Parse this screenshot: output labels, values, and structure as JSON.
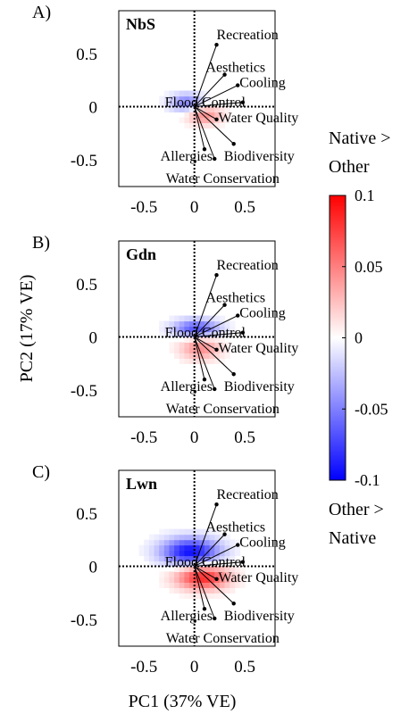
{
  "figure": {
    "ylabel": "PC2 (17% VE)",
    "xlabel": "PC1 (37% VE)"
  },
  "colorbar": {
    "title_top": [
      "Native >",
      "Other"
    ],
    "title_bottom": [
      "Other >",
      "Native"
    ],
    "ticks": [
      "0.1",
      "0.05",
      "0",
      "-0.05",
      "-0.1"
    ],
    "tick_values": [
      0.1,
      0.05,
      0,
      -0.05,
      -0.1
    ],
    "range": [
      -0.1,
      0.1
    ],
    "colors": {
      "low": "#0000ff",
      "mid": "#ffffff",
      "high": "#ff0000"
    }
  },
  "chart_data": [
    {
      "type": "heatmap",
      "panel_label": "A)",
      "title": "NbS",
      "xlim": [
        -0.75,
        0.8
      ],
      "ylim": [
        -0.75,
        0.9
      ],
      "xticks": [
        -0.5,
        0,
        0.5
      ],
      "xtick_labels": [
        "-0.5",
        "0",
        "0.5"
      ],
      "yticks": [
        0.5,
        0,
        -0.5
      ],
      "ytick_labels": [
        "0.5",
        "0",
        "-0.5"
      ],
      "loadings": [
        {
          "name": "Recreation",
          "x": 0.22,
          "y": 0.58
        },
        {
          "name": "Aesthetics",
          "x": 0.3,
          "y": 0.3
        },
        {
          "name": "Cooling",
          "x": 0.43,
          "y": 0.2
        },
        {
          "name": "Flood Control",
          "x": 0.48,
          "y": 0.04
        },
        {
          "name": "Water Quality",
          "x": 0.22,
          "y": -0.12
        },
        {
          "name": "Biodiversity",
          "x": 0.39,
          "y": -0.35
        },
        {
          "name": "Allergies",
          "x": 0.1,
          "y": -0.4
        },
        {
          "name": "Water Conservation",
          "x": 0.2,
          "y": -0.49
        }
      ],
      "blobs": [
        {
          "x": -0.08,
          "y": 0.04,
          "sx": 0.12,
          "sy": 0.06,
          "value": -0.05
        },
        {
          "x": 0.1,
          "y": -0.08,
          "sx": 0.12,
          "sy": 0.06,
          "value": 0.045
        }
      ]
    },
    {
      "type": "heatmap",
      "panel_label": "B)",
      "title": "Gdn",
      "xlim": [
        -0.75,
        0.8
      ],
      "ylim": [
        -0.75,
        0.9
      ],
      "xticks": [
        -0.5,
        0,
        0.5
      ],
      "xtick_labels": [
        "-0.5",
        "0",
        "0.5"
      ],
      "yticks": [
        0.5,
        0,
        -0.5
      ],
      "ytick_labels": [
        "0.5",
        "0",
        "-0.5"
      ],
      "loadings": [
        {
          "name": "Recreation",
          "x": 0.22,
          "y": 0.58
        },
        {
          "name": "Aesthetics",
          "x": 0.3,
          "y": 0.3
        },
        {
          "name": "Cooling",
          "x": 0.43,
          "y": 0.2
        },
        {
          "name": "Flood Control",
          "x": 0.48,
          "y": 0.04
        },
        {
          "name": "Water Quality",
          "x": 0.22,
          "y": -0.12
        },
        {
          "name": "Biodiversity",
          "x": 0.39,
          "y": -0.35
        },
        {
          "name": "Allergies",
          "x": 0.1,
          "y": -0.4
        },
        {
          "name": "Water Conservation",
          "x": 0.2,
          "y": -0.49
        }
      ],
      "blobs": [
        {
          "x": 0.02,
          "y": 0.08,
          "sx": 0.16,
          "sy": 0.06,
          "value": -0.07
        },
        {
          "x": 0.06,
          "y": -0.1,
          "sx": 0.14,
          "sy": 0.08,
          "value": 0.045
        }
      ]
    },
    {
      "type": "heatmap",
      "panel_label": "C)",
      "title": "Lwn",
      "xlim": [
        -0.75,
        0.8
      ],
      "ylim": [
        -0.75,
        0.9
      ],
      "xticks": [
        -0.5,
        0,
        0.5
      ],
      "xtick_labels": [
        "-0.5",
        "0",
        "0.5"
      ],
      "yticks": [
        0.5,
        0,
        -0.5
      ],
      "ytick_labels": [
        "0.5",
        "0",
        "-0.5"
      ],
      "loadings": [
        {
          "name": "Recreation",
          "x": 0.22,
          "y": 0.58
        },
        {
          "name": "Aesthetics",
          "x": 0.3,
          "y": 0.3
        },
        {
          "name": "Cooling",
          "x": 0.43,
          "y": 0.2
        },
        {
          "name": "Flood Control",
          "x": 0.48,
          "y": 0.04
        },
        {
          "name": "Water Quality",
          "x": 0.22,
          "y": -0.12
        },
        {
          "name": "Biodiversity",
          "x": 0.39,
          "y": -0.35
        },
        {
          "name": "Allergies",
          "x": 0.1,
          "y": -0.4
        },
        {
          "name": "Water Conservation",
          "x": 0.2,
          "y": -0.49
        }
      ],
      "blobs": [
        {
          "x": -0.04,
          "y": 0.14,
          "sx": 0.2,
          "sy": 0.09,
          "value": -0.095
        },
        {
          "x": 0.08,
          "y": -0.1,
          "sx": 0.18,
          "sy": 0.08,
          "value": 0.085
        }
      ]
    }
  ]
}
